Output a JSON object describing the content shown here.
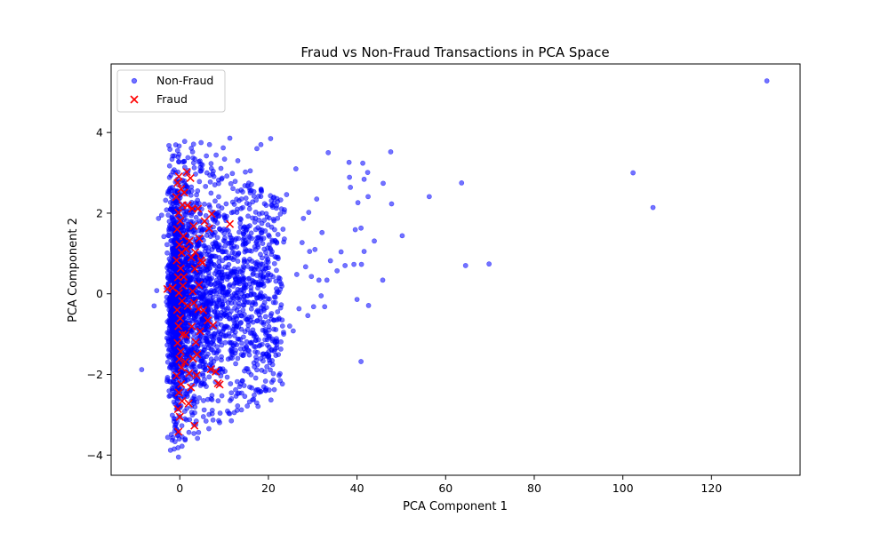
{
  "chart_data": {
    "type": "scatter",
    "title": "Fraud vs Non-Fraud Transactions in PCA Space",
    "xlabel": "PCA Component 1",
    "ylabel": "PCA Component 2",
    "xlim": [
      -15.5,
      140
    ],
    "ylim": [
      -4.5,
      5.7
    ],
    "xticks": [
      0,
      20,
      40,
      60,
      80,
      100,
      120
    ],
    "yticks": [
      -4,
      -2,
      0,
      2,
      4
    ],
    "grid": false,
    "legend": {
      "location": "upper-left",
      "entries": [
        "Non-Fraud",
        "Fraud"
      ]
    },
    "series": [
      {
        "name": "Non-Fraud",
        "marker": "circle",
        "color": "#0000ff",
        "opacity": 0.55,
        "points": [
          [
            132.5,
            5.28
          ],
          [
            106.8,
            2.14
          ],
          [
            102.3,
            3.0
          ],
          [
            69.8,
            0.74
          ],
          [
            64.5,
            0.7
          ],
          [
            63.6,
            2.75
          ],
          [
            56.3,
            2.41
          ],
          [
            50.2,
            1.44
          ],
          [
            47.6,
            3.52
          ],
          [
            47.8,
            2.23
          ],
          [
            45.9,
            2.74
          ],
          [
            45.8,
            0.34
          ],
          [
            43.9,
            1.31
          ],
          [
            42.5,
            2.41
          ],
          [
            42.4,
            3.01
          ],
          [
            41.6,
            1.05
          ],
          [
            41.3,
            3.24
          ],
          [
            41.0,
            0.73
          ],
          [
            40.9,
            1.63
          ],
          [
            40.2,
            2.26
          ],
          [
            41.6,
            2.84
          ],
          [
            40.9,
            -1.68
          ],
          [
            40.0,
            -0.14
          ],
          [
            42.6,
            -0.29
          ],
          [
            39.6,
            1.59
          ],
          [
            39.3,
            0.73
          ],
          [
            38.5,
            2.64
          ],
          [
            38.3,
            2.89
          ],
          [
            38.2,
            3.26
          ],
          [
            37.3,
            0.7
          ],
          [
            35.5,
            0.57
          ],
          [
            34.0,
            0.82
          ],
          [
            33.5,
            3.5
          ],
          [
            33.2,
            0.34
          ],
          [
            32.7,
            -0.32
          ],
          [
            32.1,
            1.52
          ],
          [
            31.4,
            0.34
          ],
          [
            30.9,
            2.35
          ],
          [
            30.5,
            1.1
          ],
          [
            29.3,
            1.05
          ],
          [
            29.1,
            2.02
          ],
          [
            28.4,
            0.67
          ],
          [
            27.9,
            1.87
          ],
          [
            26.2,
            3.1
          ],
          [
            24.8,
            -0.8
          ],
          [
            22.3,
            0.4
          ],
          [
            21.1,
            -2.14
          ],
          [
            20.5,
            3.85
          ],
          [
            19.4,
            -1.0
          ],
          [
            18.3,
            3.7
          ],
          [
            17.4,
            3.6
          ],
          [
            30.2,
            -0.32
          ],
          [
            29.7,
            0.43
          ],
          [
            28.9,
            -0.54
          ],
          [
            27.6,
            1.27
          ],
          [
            26.4,
            0.48
          ],
          [
            25.6,
            -0.92
          ],
          [
            24.1,
            2.46
          ],
          [
            23.6,
            1.36
          ],
          [
            23.1,
            -0.65
          ],
          [
            22.8,
            -1.37
          ],
          [
            21.5,
            0.92
          ],
          [
            20.7,
            -0.49
          ],
          [
            19.9,
            1.71
          ],
          [
            19.2,
            -1.93
          ],
          [
            18.5,
            0.28
          ],
          [
            17.8,
            2.42
          ],
          [
            17.1,
            -1.31
          ],
          [
            16.3,
            0.81
          ],
          [
            15.6,
            -0.21
          ],
          [
            14.8,
            3.02
          ],
          [
            14.1,
            -2.16
          ],
          [
            13.4,
            1.53
          ],
          [
            12.7,
            -0.83
          ],
          [
            12.0,
            2.61
          ],
          [
            11.4,
            -1.59
          ],
          [
            10.7,
            0.36
          ],
          [
            10.1,
            3.34
          ],
          [
            9.5,
            -2.53
          ],
          [
            8.9,
            1.21
          ],
          [
            8.3,
            -0.58
          ],
          [
            7.7,
            2.91
          ],
          [
            7.1,
            -1.38
          ],
          [
            6.6,
            0.44
          ],
          [
            6.0,
            3.42
          ],
          [
            5.5,
            -2.88
          ],
          [
            5.0,
            1.79
          ],
          [
            4.5,
            -0.73
          ],
          [
            4.0,
            2.32
          ],
          [
            3.5,
            -1.94
          ],
          [
            3.0,
            0.58
          ],
          [
            2.6,
            3.61
          ],
          [
            2.2,
            -3.12
          ],
          [
            1.8,
            1.25
          ],
          [
            1.4,
            -0.43
          ],
          [
            1.0,
            2.74
          ],
          [
            0.6,
            -1.71
          ],
          [
            0.2,
            0.12
          ],
          [
            -0.2,
            3.27
          ],
          [
            -0.6,
            -2.41
          ],
          [
            -1.0,
            1.46
          ],
          [
            -1.4,
            -0.81
          ],
          [
            -1.8,
            2.07
          ],
          [
            -2.2,
            -1.26
          ],
          [
            -2.6,
            0.69
          ],
          [
            -3.0,
            -0.2
          ],
          [
            -8.6,
            -1.88
          ],
          [
            -5.8,
            -0.3
          ],
          [
            -5.2,
            0.08
          ],
          [
            -4.8,
            1.87
          ],
          [
            -4.1,
            1.95
          ],
          [
            -3.6,
            1.42
          ],
          [
            -3.2,
            2.32
          ],
          [
            -2.8,
            -0.96
          ],
          [
            -2.4,
            -2.54
          ],
          [
            -0.3,
            -4.05
          ],
          [
            0.5,
            -3.78
          ],
          [
            1.2,
            -3.6
          ],
          [
            7.5,
            -3.13
          ],
          [
            12.6,
            -2.38
          ],
          [
            15.3,
            -1.86
          ],
          [
            18.7,
            -1.5
          ],
          [
            21.9,
            -1.19
          ],
          [
            26.9,
            -0.37
          ],
          [
            31.9,
            -0.05
          ],
          [
            36.4,
            1.04
          ],
          [
            8.2,
            3.44
          ],
          [
            11.3,
            3.86
          ],
          [
            13.1,
            3.3
          ],
          [
            15.9,
            3.05
          ],
          [
            9.8,
            3.62
          ],
          [
            6.7,
            3.7
          ],
          [
            4.8,
            3.75
          ],
          [
            3.1,
            3.71
          ],
          [
            1.1,
            3.78
          ],
          [
            -0.5,
            3.55
          ],
          [
            -1.6,
            3.42
          ],
          [
            -2.0,
            2.94
          ]
        ]
      },
      {
        "name": "Fraud",
        "marker": "x",
        "color": "#ff0000",
        "points": [
          [
            -0.2,
            2.91
          ],
          [
            -0.5,
            2.75
          ],
          [
            0.3,
            2.6
          ],
          [
            -0.8,
            2.4
          ],
          [
            0.6,
            2.2
          ],
          [
            -0.3,
            2.01
          ],
          [
            0.1,
            1.81
          ],
          [
            -0.6,
            1.6
          ],
          [
            0.8,
            1.43
          ],
          [
            -0.1,
            1.22
          ],
          [
            0.4,
            1.02
          ],
          [
            -0.7,
            0.83
          ],
          [
            0.2,
            0.63
          ],
          [
            -0.4,
            0.41
          ],
          [
            0.7,
            0.2
          ],
          [
            -0.2,
            0.02
          ],
          [
            0.5,
            -0.18
          ],
          [
            -0.6,
            -0.4
          ],
          [
            0.1,
            -0.61
          ],
          [
            -0.3,
            -0.8
          ],
          [
            0.6,
            -1.01
          ],
          [
            -0.5,
            -1.22
          ],
          [
            0.2,
            -1.43
          ],
          [
            -0.1,
            -1.62
          ],
          [
            0.4,
            -1.83
          ],
          [
            -0.7,
            -2.03
          ],
          [
            0.3,
            -2.24
          ],
          [
            -0.2,
            -2.45
          ],
          [
            0.5,
            -2.66
          ],
          [
            -0.4,
            -2.86
          ],
          [
            0.0,
            -3.05
          ],
          [
            -0.3,
            -3.42
          ],
          [
            1.0,
            2.51
          ],
          [
            1.4,
            1.11
          ],
          [
            1.8,
            -0.3
          ],
          [
            1.2,
            -1.69
          ],
          [
            2.0,
            -2.72
          ],
          [
            2.4,
            2.87
          ],
          [
            2.8,
            2.11
          ],
          [
            3.1,
            1.68
          ],
          [
            2.6,
            0.9
          ],
          [
            3.4,
            0.62
          ],
          [
            2.9,
            0.06
          ],
          [
            3.2,
            -0.22
          ],
          [
            2.7,
            -0.81
          ],
          [
            3.6,
            -1.2
          ],
          [
            3.0,
            -1.61
          ],
          [
            3.8,
            -2.02
          ],
          [
            2.5,
            -2.32
          ],
          [
            3.3,
            -3.27
          ],
          [
            4.1,
            2.11
          ],
          [
            4.4,
            1.37
          ],
          [
            4.8,
            0.83
          ],
          [
            4.2,
            -0.38
          ],
          [
            4.6,
            -0.93
          ],
          [
            5.1,
            0.77
          ],
          [
            5.6,
            1.8
          ],
          [
            6.3,
            -0.66
          ],
          [
            6.6,
            1.62
          ],
          [
            7.2,
            1.98
          ],
          [
            7.5,
            -0.78
          ],
          [
            7.0,
            -1.87
          ],
          [
            8.1,
            -1.93
          ],
          [
            8.6,
            -2.22
          ],
          [
            9.0,
            -2.25
          ],
          [
            11.3,
            1.73
          ],
          [
            -2.8,
            0.12
          ],
          [
            -1.6,
            0.15
          ],
          [
            1.6,
            3.02
          ],
          [
            0.9,
            0.42
          ],
          [
            1.3,
            -1.02
          ],
          [
            1.7,
            2.19
          ],
          [
            2.2,
            1.31
          ],
          [
            2.1,
            -1.97
          ],
          [
            3.5,
            1.03
          ],
          [
            3.9,
            -1.5
          ],
          [
            4.3,
            0.22
          ],
          [
            5.3,
            -0.41
          ]
        ]
      }
    ]
  }
}
